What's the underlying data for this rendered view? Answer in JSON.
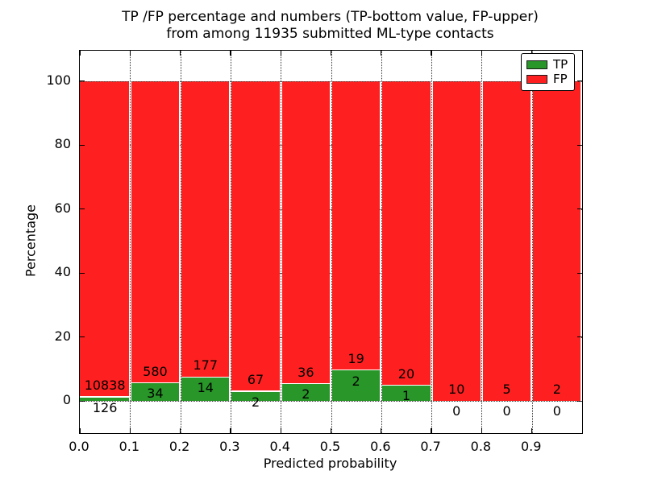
{
  "title": {
    "line1": "TP /FP percentage and numbers (TP-bottom value, FP-upper)",
    "line2": "from among 11935 submitted ML-type contacts"
  },
  "axes": {
    "x_label": "Predicted probability",
    "y_label": "Percentage",
    "x_tick_labels": [
      "0.0",
      "0.1",
      "0.2",
      "0.3",
      "0.4",
      "0.5",
      "0.6",
      "0.7",
      "0.8",
      "0.9"
    ],
    "y_tick_values": [
      0,
      20,
      40,
      60,
      80,
      100
    ]
  },
  "legend": {
    "items": [
      {
        "label": "TP",
        "color": "#289628"
      },
      {
        "label": "FP",
        "color": "#fe2020"
      }
    ]
  },
  "colors": {
    "tp_green": "#289628",
    "fp_red": "#fe2020",
    "grid": "#333333",
    "text": "#000000",
    "background": "#ffffff"
  },
  "chart_data": {
    "type": "bar",
    "stacked": true,
    "title": "TP /FP percentage and numbers (TP-bottom value, FP-upper) from among 11935 submitted ML-type contacts",
    "xlabel": "Predicted probability",
    "ylabel": "Percentage",
    "xlim": [
      0.0,
      1.0
    ],
    "ylim": [
      -10,
      110
    ],
    "grid": "dotted",
    "legend_position": "upper right",
    "total_contacts": 11935,
    "bin_width": 0.1,
    "series": [
      {
        "name": "TP",
        "color": "#289628"
      },
      {
        "name": "FP",
        "color": "#fe2020"
      }
    ],
    "bins": [
      {
        "x_start": 0.0,
        "x_end": 0.1,
        "tp_count": 126,
        "fp_count": 10838,
        "tp_pct": 1.1,
        "fp_pct": 98.9
      },
      {
        "x_start": 0.1,
        "x_end": 0.2,
        "tp_count": 34,
        "fp_count": 580,
        "tp_pct": 5.5,
        "fp_pct": 94.5
      },
      {
        "x_start": 0.2,
        "x_end": 0.3,
        "tp_count": 14,
        "fp_count": 177,
        "tp_pct": 7.3,
        "fp_pct": 92.7
      },
      {
        "x_start": 0.3,
        "x_end": 0.4,
        "tp_count": 2,
        "fp_count": 67,
        "tp_pct": 2.9,
        "fp_pct": 97.1
      },
      {
        "x_start": 0.4,
        "x_end": 0.5,
        "tp_count": 2,
        "fp_count": 36,
        "tp_pct": 5.3,
        "fp_pct": 94.7
      },
      {
        "x_start": 0.5,
        "x_end": 0.6,
        "tp_count": 2,
        "fp_count": 19,
        "tp_pct": 9.5,
        "fp_pct": 90.5
      },
      {
        "x_start": 0.6,
        "x_end": 0.7,
        "tp_count": 1,
        "fp_count": 20,
        "tp_pct": 4.8,
        "fp_pct": 95.2
      },
      {
        "x_start": 0.7,
        "x_end": 0.8,
        "tp_count": 0,
        "fp_count": 10,
        "tp_pct": 0.0,
        "fp_pct": 100.0
      },
      {
        "x_start": 0.8,
        "x_end": 0.9,
        "tp_count": 0,
        "fp_count": 5,
        "tp_pct": 0.0,
        "fp_pct": 100.0
      },
      {
        "x_start": 0.9,
        "x_end": 1.0,
        "tp_count": 0,
        "fp_count": 2,
        "tp_pct": 0.0,
        "fp_pct": 100.0
      }
    ]
  }
}
